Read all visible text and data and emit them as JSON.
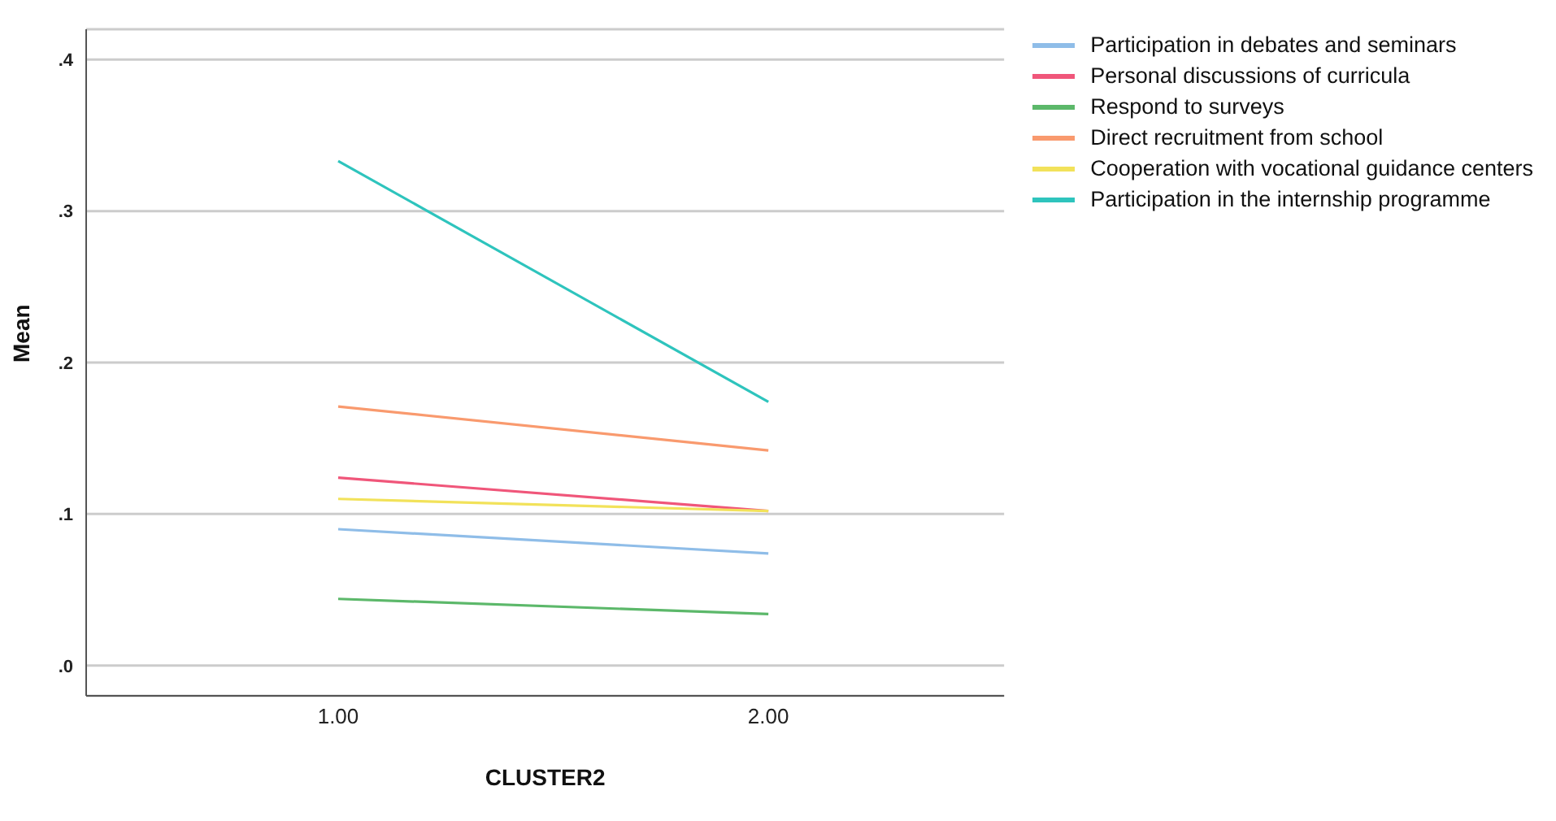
{
  "chart_data": {
    "type": "line",
    "xlabel": "CLUSTER2",
    "ylabel": "Mean",
    "categories": [
      "1.00",
      "2.00"
    ],
    "series": [
      {
        "name": "Participation in debates and seminars",
        "color": "#8fbde8",
        "values": [
          0.09,
          0.074
        ]
      },
      {
        "name": "Personal discussions of curricula",
        "color": "#f0567a",
        "values": [
          0.124,
          0.102
        ]
      },
      {
        "name": "Respond to surveys",
        "color": "#5cb86a",
        "values": [
          0.044,
          0.034
        ]
      },
      {
        "name": "Direct recruitment from school",
        "color": "#f99a6e",
        "values": [
          0.171,
          0.142
        ]
      },
      {
        "name": "Cooperation with vocational guidance centers",
        "color": "#f2e25a",
        "values": [
          0.11,
          0.102
        ]
      },
      {
        "name": "Participation in the internship programme",
        "color": "#2ec4bd",
        "values": [
          0.333,
          0.174
        ]
      }
    ],
    "ylim": [
      -0.02,
      0.42
    ],
    "yticks": [
      {
        "value": 0,
        "label": ".0"
      },
      {
        "value": 0.1,
        "label": ".1"
      },
      {
        "value": 0.2,
        "label": ".2"
      },
      {
        "value": 0.3,
        "label": ".3"
      },
      {
        "value": 0.4,
        "label": ".4"
      }
    ],
    "grid": "y",
    "legend": "top right",
    "marker": "none",
    "line_style": "solid"
  }
}
